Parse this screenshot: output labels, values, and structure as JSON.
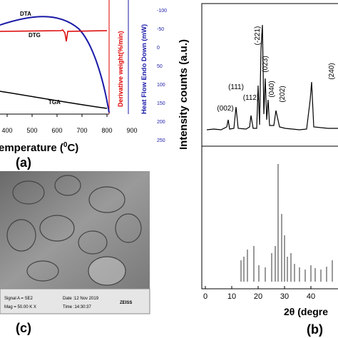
{
  "panel_a": {
    "curve_labels": {
      "dta": "DTA",
      "dtg": "DTG",
      "tga": "TGA"
    },
    "xticks": [
      "400",
      "500",
      "600",
      "700",
      "800",
      "900"
    ],
    "x_axis_label": "emperature (",
    "x_axis_label_sup": "0",
    "x_axis_label_end": "C)",
    "y2_label": "Derivative weight(%/min)",
    "y3_label": "Heat Flow Endo Down (mW)",
    "y3ticks": [
      "-100",
      "-50",
      "0",
      "50",
      "100",
      "150",
      "200",
      "250"
    ],
    "panel_label": "(a)"
  },
  "panel_b": {
    "y_axis_label": "Intensity counts (a.u.)",
    "x_axis_label": "2θ (degre",
    "xticks": [
      "0",
      "10",
      "20",
      "30",
      "40"
    ],
    "peaks": [
      "(002)",
      "(111)",
      "(112)",
      "(-221)",
      "(023)",
      "(040)",
      "(202)",
      "(240)"
    ],
    "panel_label": "(b)"
  },
  "panel_c": {
    "signal": "Signal A = SE2",
    "mag": "Mag =  50.00 K X",
    "date": "Date :12 Nov 2019",
    "time": "Time :14:30:37",
    "brand": "ZEISS",
    "panel_label": "(c)"
  }
}
